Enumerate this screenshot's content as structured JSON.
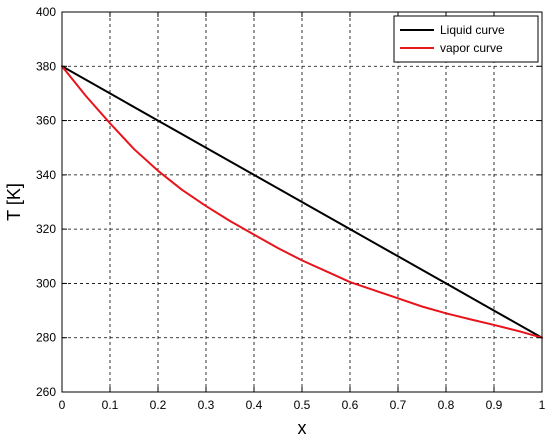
{
  "chart_data": {
    "type": "line",
    "title": "",
    "xlabel": "x",
    "ylabel": "T [K]",
    "xlim": [
      0,
      1
    ],
    "ylim": [
      260,
      400
    ],
    "xticks": [
      0,
      0.1,
      0.2,
      0.3,
      0.4,
      0.5,
      0.6,
      0.7,
      0.8,
      0.9,
      1
    ],
    "xtick_labels": [
      "0",
      "0.1",
      "0.2",
      "0.3",
      "0.4",
      "0.5",
      "0.6",
      "0.7",
      "0.8",
      "0.9",
      "1"
    ],
    "yticks": [
      260,
      280,
      300,
      320,
      340,
      360,
      380,
      400
    ],
    "ytick_labels": [
      "260",
      "280",
      "300",
      "320",
      "340",
      "360",
      "380",
      "400"
    ],
    "grid": true,
    "grid_style": "dashed",
    "legend_position": "top-right",
    "series": [
      {
        "name": "Liquid curve",
        "color": "#000000",
        "x": [
          0,
          0.1,
          0.2,
          0.3,
          0.4,
          0.5,
          0.6,
          0.7,
          0.8,
          0.9,
          1
        ],
        "y": [
          380,
          370,
          360,
          350,
          340,
          330,
          320,
          310,
          300,
          290,
          280
        ]
      },
      {
        "name": "vapor curve",
        "color": "#e8141b",
        "x": [
          0,
          0.05,
          0.1,
          0.15,
          0.2,
          0.25,
          0.3,
          0.35,
          0.4,
          0.45,
          0.5,
          0.55,
          0.6,
          0.65,
          0.7,
          0.75,
          0.8,
          0.85,
          0.9,
          0.95,
          1
        ],
        "y": [
          380,
          369,
          359,
          349.5,
          341.5,
          334.5,
          328.5,
          323,
          318,
          313,
          308.5,
          304.5,
          300.5,
          297.5,
          294.5,
          291.5,
          289,
          286.8,
          284.7,
          282.5,
          280
        ]
      }
    ]
  }
}
